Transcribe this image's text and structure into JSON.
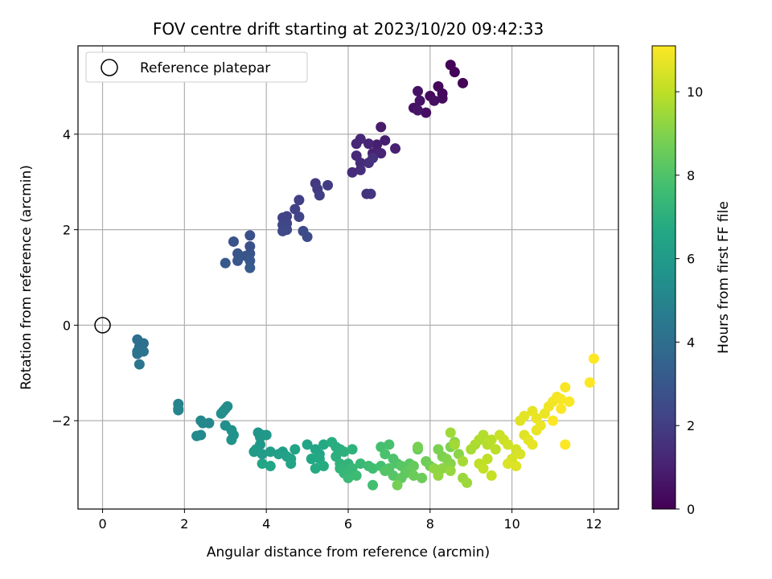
{
  "chart_data": {
    "type": "scatter",
    "title": "FOV centre drift starting at 2023/10/20 09:42:33",
    "xlabel": "Angular distance from reference (arcmin)",
    "ylabel": "Rotation from reference (arcmin)",
    "xlim": [
      -0.6,
      12.6
    ],
    "ylim": [
      -3.85,
      5.85
    ],
    "xticks": [
      0,
      2,
      4,
      6,
      8,
      10,
      12
    ],
    "yticks": [
      -2,
      0,
      2,
      4
    ],
    "grid": true,
    "colormap": "viridis",
    "colorbar": {
      "label": "Hours from first FF file",
      "range": [
        0,
        11.1
      ],
      "ticks": [
        0,
        2,
        4,
        6,
        8,
        10
      ]
    },
    "legend": {
      "placement": "top-left",
      "entries": [
        {
          "label": "Reference platepar",
          "marker": "open-circle"
        }
      ]
    },
    "reference_point": {
      "x": 0,
      "y": 0
    },
    "points": [
      [
        8.5,
        5.45,
        0.05
      ],
      [
        8.6,
        5.3,
        0.1
      ],
      [
        8.8,
        5.07,
        0.15
      ],
      [
        8.2,
        5.0,
        0.2
      ],
      [
        8.3,
        4.85,
        0.25
      ],
      [
        8.0,
        4.8,
        0.3
      ],
      [
        8.3,
        4.75,
        0.35
      ],
      [
        8.1,
        4.7,
        0.4
      ],
      [
        7.9,
        4.45,
        0.45
      ],
      [
        7.6,
        4.55,
        0.5
      ],
      [
        7.7,
        4.9,
        0.55
      ],
      [
        7.75,
        4.7,
        0.6
      ],
      [
        7.7,
        4.5,
        0.65
      ],
      [
        6.8,
        4.15,
        0.85
      ],
      [
        6.9,
        3.87,
        0.9
      ],
      [
        6.7,
        3.78,
        0.95
      ],
      [
        7.15,
        3.7,
        1.0
      ],
      [
        6.6,
        3.6,
        1.05
      ],
      [
        6.8,
        3.6,
        1.1
      ],
      [
        6.5,
        3.8,
        1.15
      ],
      [
        6.3,
        3.9,
        1.2
      ],
      [
        6.2,
        3.8,
        1.25
      ],
      [
        6.2,
        3.55,
        1.3
      ],
      [
        6.3,
        3.4,
        1.35
      ],
      [
        6.1,
        3.2,
        1.4
      ],
      [
        6.3,
        3.25,
        1.45
      ],
      [
        6.5,
        3.4,
        1.5
      ],
      [
        6.6,
        3.5,
        1.55
      ],
      [
        6.45,
        2.75,
        1.6
      ],
      [
        6.55,
        2.75,
        1.65
      ],
      [
        5.2,
        2.97,
        1.85
      ],
      [
        5.25,
        2.85,
        1.9
      ],
      [
        5.5,
        2.93,
        1.95
      ],
      [
        5.3,
        2.72,
        2.0
      ],
      [
        4.8,
        2.62,
        2.05
      ],
      [
        4.7,
        2.43,
        2.1
      ],
      [
        4.5,
        2.28,
        2.15
      ],
      [
        4.4,
        2.25,
        2.2
      ],
      [
        4.8,
        2.27,
        2.25
      ],
      [
        4.5,
        2.13,
        2.3
      ],
      [
        4.4,
        2.1,
        2.35
      ],
      [
        4.5,
        2.0,
        2.4
      ],
      [
        4.4,
        1.97,
        2.45
      ],
      [
        4.9,
        1.97,
        2.5
      ],
      [
        5.0,
        1.85,
        2.55
      ],
      [
        3.6,
        1.88,
        2.7
      ],
      [
        3.6,
        1.65,
        2.75
      ],
      [
        3.2,
        1.75,
        2.8
      ],
      [
        3.6,
        1.5,
        2.85
      ],
      [
        3.3,
        1.5,
        2.9
      ],
      [
        3.5,
        1.45,
        2.95
      ],
      [
        3.3,
        1.35,
        3.0
      ],
      [
        3.6,
        1.35,
        3.05
      ],
      [
        3.0,
        1.3,
        3.1
      ],
      [
        3.6,
        1.2,
        3.15
      ],
      [
        0.85,
        -0.3,
        4.0
      ],
      [
        1.0,
        -0.38,
        4.05
      ],
      [
        0.9,
        -0.45,
        4.1
      ],
      [
        0.85,
        -0.55,
        4.15
      ],
      [
        1.0,
        -0.55,
        4.2
      ],
      [
        0.85,
        -0.6,
        4.25
      ],
      [
        0.9,
        -0.82,
        4.3
      ],
      [
        1.85,
        -1.65,
        4.9
      ],
      [
        1.85,
        -1.75,
        4.95
      ],
      [
        1.85,
        -1.78,
        5.0
      ],
      [
        2.4,
        -2.0,
        5.05
      ],
      [
        2.6,
        -2.05,
        5.1
      ],
      [
        2.45,
        -2.05,
        5.15
      ],
      [
        2.3,
        -2.32,
        5.2
      ],
      [
        2.4,
        -2.3,
        5.25
      ],
      [
        2.95,
        -1.8,
        5.3
      ],
      [
        3.05,
        -1.7,
        5.35
      ],
      [
        3.0,
        -1.75,
        5.4
      ],
      [
        2.9,
        -1.85,
        5.45
      ],
      [
        3.0,
        -2.1,
        5.5
      ],
      [
        3.15,
        -2.2,
        5.55
      ],
      [
        3.2,
        -2.3,
        5.6
      ],
      [
        3.15,
        -2.4,
        5.65
      ],
      [
        3.8,
        -2.25,
        5.75
      ],
      [
        3.9,
        -2.3,
        5.8
      ],
      [
        3.85,
        -2.35,
        5.85
      ],
      [
        4.0,
        -2.3,
        5.9
      ],
      [
        3.85,
        -2.5,
        5.95
      ],
      [
        3.75,
        -2.6,
        6.0
      ],
      [
        3.7,
        -2.65,
        6.05
      ],
      [
        3.9,
        -2.7,
        6.1
      ],
      [
        4.1,
        -2.65,
        6.15
      ],
      [
        4.4,
        -2.65,
        6.2
      ],
      [
        4.3,
        -2.7,
        6.25
      ],
      [
        4.5,
        -2.75,
        6.3
      ],
      [
        4.6,
        -2.8,
        6.35
      ],
      [
        4.7,
        -2.6,
        6.4
      ],
      [
        4.6,
        -2.9,
        6.45
      ],
      [
        3.9,
        -2.9,
        6.5
      ],
      [
        4.1,
        -2.95,
        6.55
      ],
      [
        5.0,
        -2.5,
        6.45
      ],
      [
        5.2,
        -2.6,
        6.5
      ],
      [
        5.3,
        -2.7,
        6.55
      ],
      [
        5.1,
        -2.8,
        6.6
      ],
      [
        5.3,
        -2.8,
        6.65
      ],
      [
        5.4,
        -2.5,
        6.7
      ],
      [
        5.2,
        -3.0,
        6.75
      ],
      [
        5.4,
        -2.95,
        6.8
      ],
      [
        5.6,
        -2.45,
        6.85
      ],
      [
        5.7,
        -2.55,
        6.9
      ],
      [
        5.8,
        -2.6,
        6.95
      ],
      [
        5.7,
        -2.75,
        7.0
      ],
      [
        5.9,
        -2.65,
        7.05
      ],
      [
        6.1,
        -2.6,
        7.1
      ],
      [
        5.8,
        -2.9,
        7.15
      ],
      [
        6.0,
        -2.9,
        7.2
      ],
      [
        5.8,
        -3.0,
        7.25
      ],
      [
        6.0,
        -3.05,
        7.3
      ],
      [
        5.9,
        -3.1,
        7.35
      ],
      [
        6.1,
        -3.0,
        7.4
      ],
      [
        6.3,
        -2.9,
        7.45
      ],
      [
        6.0,
        -3.2,
        7.5
      ],
      [
        6.2,
        -3.15,
        7.55
      ],
      [
        6.5,
        -2.95,
        7.6
      ],
      [
        6.6,
        -3.0,
        7.65
      ],
      [
        6.6,
        -3.35,
        7.7
      ],
      [
        6.8,
        -2.95,
        7.75
      ],
      [
        6.8,
        -2.55,
        7.8
      ],
      [
        7.0,
        -2.5,
        7.85
      ],
      [
        6.9,
        -2.7,
        7.9
      ],
      [
        7.1,
        -2.8,
        7.95
      ],
      [
        7.2,
        -2.9,
        8.0
      ],
      [
        7.0,
        -3.0,
        8.05
      ],
      [
        6.9,
        -3.05,
        8.1
      ],
      [
        7.1,
        -3.15,
        8.15
      ],
      [
        7.3,
        -2.95,
        8.2
      ],
      [
        7.5,
        -2.9,
        8.25
      ],
      [
        7.4,
        -3.1,
        8.3
      ],
      [
        7.3,
        -3.2,
        8.35
      ],
      [
        7.5,
        -3.05,
        8.4
      ],
      [
        7.6,
        -2.95,
        8.45
      ],
      [
        7.7,
        -2.6,
        8.5
      ],
      [
        7.6,
        -3.15,
        8.55
      ],
      [
        7.8,
        -3.2,
        8.6
      ],
      [
        7.9,
        -2.85,
        8.65
      ],
      [
        8.0,
        -2.95,
        8.7
      ],
      [
        7.2,
        -3.35,
        8.75
      ],
      [
        7.7,
        -2.55,
        8.8
      ],
      [
        8.2,
        -2.6,
        8.85
      ],
      [
        8.3,
        -2.75,
        8.9
      ],
      [
        8.5,
        -2.55,
        8.95
      ],
      [
        8.4,
        -2.8,
        9.0
      ],
      [
        8.6,
        -2.45,
        9.05
      ],
      [
        8.5,
        -2.9,
        9.1
      ],
      [
        8.7,
        -2.7,
        9.15
      ],
      [
        8.3,
        -3.0,
        9.2
      ],
      [
        8.1,
        -3.0,
        9.25
      ],
      [
        8.2,
        -3.15,
        9.3
      ],
      [
        8.5,
        -3.05,
        9.35
      ],
      [
        8.8,
        -3.2,
        9.4
      ],
      [
        8.9,
        -3.3,
        9.45
      ],
      [
        8.5,
        -2.25,
        9.5
      ],
      [
        8.6,
        -2.5,
        9.55
      ],
      [
        8.8,
        -2.85,
        9.6
      ],
      [
        9.0,
        -2.6,
        9.65
      ],
      [
        9.1,
        -2.5,
        9.7
      ],
      [
        9.2,
        -2.4,
        9.75
      ],
      [
        9.3,
        -2.3,
        9.8
      ],
      [
        9.4,
        -2.5,
        9.85
      ],
      [
        9.5,
        -2.4,
        9.9
      ],
      [
        9.6,
        -2.6,
        9.95
      ],
      [
        9.4,
        -2.8,
        10.0
      ],
      [
        9.2,
        -2.9,
        10.05
      ],
      [
        9.3,
        -3.0,
        10.1
      ],
      [
        9.5,
        -3.15,
        10.15
      ],
      [
        9.7,
        -2.3,
        10.2
      ],
      [
        9.8,
        -2.4,
        10.25
      ],
      [
        9.9,
        -2.5,
        10.3
      ],
      [
        10.1,
        -2.6,
        10.35
      ],
      [
        10.0,
        -2.8,
        10.4
      ],
      [
        10.2,
        -2.7,
        10.45
      ],
      [
        9.9,
        -2.9,
        10.5
      ],
      [
        10.1,
        -2.95,
        10.55
      ],
      [
        10.3,
        -2.3,
        10.6
      ],
      [
        10.4,
        -2.4,
        10.65
      ],
      [
        10.5,
        -2.5,
        10.7
      ],
      [
        10.6,
        -2.2,
        10.75
      ],
      [
        10.7,
        -2.1,
        10.8
      ],
      [
        10.2,
        -2.0,
        10.6
      ],
      [
        10.3,
        -1.9,
        10.65
      ],
      [
        10.5,
        -1.8,
        10.7
      ],
      [
        10.6,
        -1.95,
        10.75
      ],
      [
        10.8,
        -1.85,
        10.8
      ],
      [
        10.9,
        -1.7,
        10.85
      ],
      [
        11.0,
        -1.6,
        10.9
      ],
      [
        11.1,
        -1.5,
        10.95
      ],
      [
        11.2,
        -1.55,
        11.0
      ],
      [
        11.3,
        -1.3,
        11.02
      ],
      [
        11.4,
        -1.6,
        11.04
      ],
      [
        11.2,
        -1.75,
        11.06
      ],
      [
        11.0,
        -2.0,
        11.07
      ],
      [
        11.3,
        -2.5,
        11.08
      ],
      [
        11.9,
        -1.2,
        11.09
      ],
      [
        12.0,
        -0.7,
        11.1
      ]
    ]
  }
}
